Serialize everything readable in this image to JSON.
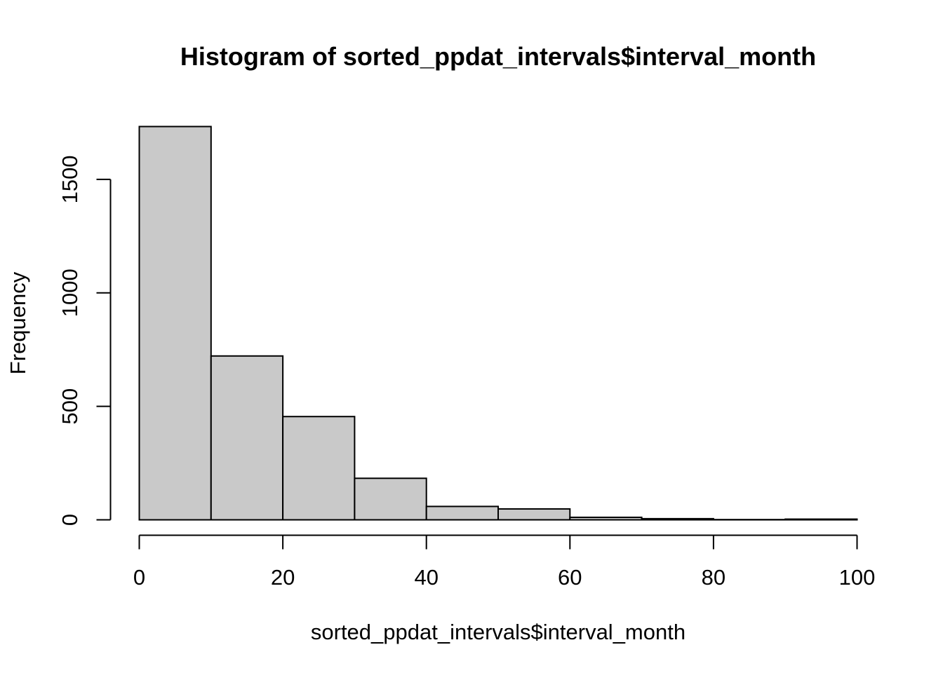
{
  "chart_data": {
    "type": "bar",
    "title": "Histogram of sorted_ppdat_intervals$interval_month",
    "xlabel": "sorted_ppdat_intervals$interval_month",
    "ylabel": "Frequency",
    "bins": [
      [
        0,
        10
      ],
      [
        10,
        20
      ],
      [
        20,
        30
      ],
      [
        30,
        40
      ],
      [
        40,
        50
      ],
      [
        50,
        60
      ],
      [
        60,
        70
      ],
      [
        70,
        80
      ],
      [
        80,
        90
      ],
      [
        90,
        100
      ]
    ],
    "values": [
      1733,
      722,
      455,
      183,
      59,
      48,
      11,
      5,
      1,
      3
    ],
    "xlim": [
      0,
      100
    ],
    "ylim": [
      0,
      1733
    ],
    "x_ticks": [
      0,
      20,
      40,
      60,
      80,
      100
    ],
    "y_ticks": [
      0,
      500,
      1000,
      1500
    ],
    "x_tick_labels": [
      "0",
      "20",
      "40",
      "60",
      "80",
      "100"
    ],
    "y_tick_labels": [
      "0",
      "500",
      "1000",
      "1500"
    ],
    "bar_color": "#c9c9c9",
    "border_color": "#000000",
    "grid": false,
    "legend": "none"
  }
}
